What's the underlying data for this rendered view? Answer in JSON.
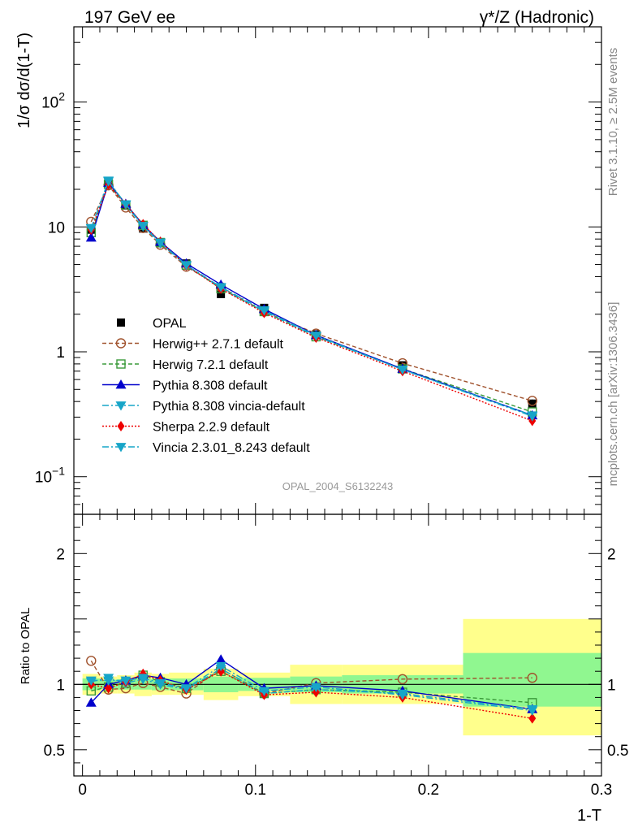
{
  "header": {
    "left_title": "197 GeV ee",
    "right_title": "γ*/Z (Hadronic)"
  },
  "side_text": {
    "rivet": "Rivet 3.1.10, ≥ 2.5M events",
    "mcplots": "mcplots.cern.ch [arXiv:1306.3436]"
  },
  "analysis_id": "OPAL_2004_S6132243",
  "chart_data": [
    {
      "type": "line",
      "panel": "main",
      "ylabel": "1/σ dσ/d(1-T)",
      "yscale": "log",
      "ylim": [
        0.05,
        400
      ],
      "xlim": [
        -0.005,
        0.3
      ],
      "yticks": [
        {
          "value": 0.1,
          "base": "10",
          "exp": "−1"
        },
        {
          "value": 1,
          "text": "1"
        },
        {
          "value": 10,
          "text": "10"
        },
        {
          "value": 100,
          "base": "10",
          "exp": "2"
        }
      ],
      "legend_position": "middle-left",
      "x": [
        0.005,
        0.015,
        0.025,
        0.035,
        0.045,
        0.06,
        0.08,
        0.105,
        0.135,
        0.185,
        0.26
      ],
      "data": {
        "name": "OPAL",
        "values": [
          9.5,
          22.5,
          14.8,
          9.7,
          7.4,
          5.1,
          2.9,
          2.25,
          1.38,
          0.78,
          0.385
        ],
        "errors": [
          0.6,
          1.2,
          0.6,
          0.4,
          0.3,
          0.2,
          0.15,
          0.08,
          0.06,
          0.04,
          0.03
        ]
      },
      "series": [
        {
          "name": "Herwig++ 2.7.1 default",
          "color": "#a0522d",
          "dash": "5,3",
          "marker": "circle-open",
          "values": [
            11.0,
            21.5,
            14.3,
            9.8,
            7.2,
            4.8,
            3.3,
            2.1,
            1.4,
            0.81,
            0.405
          ]
        },
        {
          "name": "Herwig 7.2.1 default",
          "color": "#3a9a3a",
          "dash": "5,3",
          "marker": "square-open",
          "values": [
            9.0,
            22.0,
            15.0,
            10.3,
            7.5,
            4.95,
            3.2,
            2.1,
            1.32,
            0.73,
            0.33
          ]
        },
        {
          "name": "Pythia 8.308 default",
          "color": "#0000cc",
          "dash": "",
          "marker": "triangle-up",
          "values": [
            8.2,
            22.5,
            15.3,
            10.4,
            7.6,
            5.1,
            3.45,
            2.2,
            1.36,
            0.73,
            0.31
          ]
        },
        {
          "name": "Pythia 8.308 vincia-default",
          "color": "#17a5c8",
          "dash": "8,3,2,3",
          "marker": "triangle-down",
          "values": [
            9.7,
            23.5,
            15.0,
            10.1,
            7.4,
            4.9,
            3.25,
            2.1,
            1.33,
            0.72,
            0.31
          ]
        },
        {
          "name": "Sherpa 2.2.9 default",
          "color": "#ee0000",
          "dash": "2,2",
          "marker": "diamond",
          "values": [
            9.5,
            21.8,
            15.1,
            10.5,
            7.6,
            4.9,
            3.2,
            2.05,
            1.3,
            0.7,
            0.28
          ]
        },
        {
          "name": "Vincia 2.3.01_8.243 default",
          "color": "#17a5c8",
          "dash": "8,3,2,3",
          "marker": "triangle-down",
          "values": [
            9.8,
            23.2,
            15.2,
            10.2,
            7.5,
            4.95,
            3.3,
            2.15,
            1.35,
            0.72,
            0.305
          ]
        }
      ]
    },
    {
      "type": "line",
      "panel": "ratio",
      "xlabel": "1-T",
      "ylabel": "Ratio to OPAL",
      "ylim": [
        0.3,
        2.3
      ],
      "xlim": [
        -0.005,
        0.3
      ],
      "yticks": [
        0.5,
        1,
        2
      ],
      "xticks": [
        0,
        0.1,
        0.2,
        0.3
      ],
      "x_tick_labels": [
        "0",
        "0.1",
        "0.2",
        "0.3"
      ],
      "uncertainty_bands": [
        {
          "x0": 0.0,
          "x1": 0.01,
          "stat_lo": 0.955,
          "stat_hi": 1.045,
          "tot_lo": 0.92,
          "tot_hi": 1.08
        },
        {
          "x0": 0.01,
          "x1": 0.02,
          "stat_lo": 0.965,
          "stat_hi": 1.035,
          "tot_lo": 0.93,
          "tot_hi": 1.06
        },
        {
          "x0": 0.02,
          "x1": 0.03,
          "stat_lo": 0.96,
          "stat_hi": 1.04,
          "tot_lo": 0.93,
          "tot_hi": 1.07
        },
        {
          "x0": 0.03,
          "x1": 0.04,
          "stat_lo": 0.96,
          "stat_hi": 1.04,
          "tot_lo": 0.91,
          "tot_hi": 1.09
        },
        {
          "x0": 0.04,
          "x1": 0.05,
          "stat_lo": 0.955,
          "stat_hi": 1.045,
          "tot_lo": 0.92,
          "tot_hi": 1.08
        },
        {
          "x0": 0.05,
          "x1": 0.07,
          "stat_lo": 0.955,
          "stat_hi": 1.045,
          "tot_lo": 0.92,
          "tot_hi": 1.09
        },
        {
          "x0": 0.07,
          "x1": 0.09,
          "stat_lo": 0.94,
          "stat_hi": 1.06,
          "tot_lo": 0.88,
          "tot_hi": 1.12
        },
        {
          "x0": 0.09,
          "x1": 0.12,
          "stat_lo": 0.95,
          "stat_hi": 1.05,
          "tot_lo": 0.91,
          "tot_hi": 1.09
        },
        {
          "x0": 0.12,
          "x1": 0.15,
          "stat_lo": 0.94,
          "stat_hi": 1.06,
          "tot_lo": 0.85,
          "tot_hi": 1.15
        },
        {
          "x0": 0.15,
          "x1": 0.22,
          "stat_lo": 0.93,
          "stat_hi": 1.07,
          "tot_lo": 0.85,
          "tot_hi": 1.15
        },
        {
          "x0": 0.22,
          "x1": 0.3,
          "stat_lo": 0.83,
          "stat_hi": 1.24,
          "tot_lo": 0.61,
          "tot_hi": 1.5
        }
      ],
      "series": [
        {
          "name": "Herwig++ 2.7.1 default",
          "values": [
            1.18,
            0.96,
            0.97,
            1.01,
            0.98,
            0.93,
            1.12,
            0.93,
            1.01,
            1.04,
            1.05
          ]
        },
        {
          "name": "Herwig 7.2.1 default",
          "values": [
            0.95,
            0.98,
            1.01,
            1.07,
            1.02,
            0.97,
            1.1,
            0.93,
            0.96,
            0.94,
            0.86
          ]
        },
        {
          "name": "Pythia 8.308 default",
          "values": [
            0.86,
            1.0,
            1.03,
            1.07,
            1.05,
            1.0,
            1.19,
            0.97,
            0.99,
            0.95,
            0.81
          ]
        },
        {
          "name": "Pythia 8.308 vincia-default",
          "values": [
            1.02,
            1.05,
            1.01,
            1.04,
            1.0,
            0.96,
            1.12,
            0.93,
            0.96,
            0.93,
            0.81
          ]
        },
        {
          "name": "Sherpa 2.2.9 default",
          "values": [
            1.0,
            0.97,
            1.02,
            1.08,
            1.03,
            0.96,
            1.1,
            0.92,
            0.94,
            0.9,
            0.74
          ]
        },
        {
          "name": "Vincia 2.3.01_8.243 default",
          "values": [
            1.03,
            1.03,
            1.03,
            1.05,
            1.01,
            0.97,
            1.14,
            0.95,
            0.98,
            0.92,
            0.8
          ]
        }
      ]
    }
  ]
}
